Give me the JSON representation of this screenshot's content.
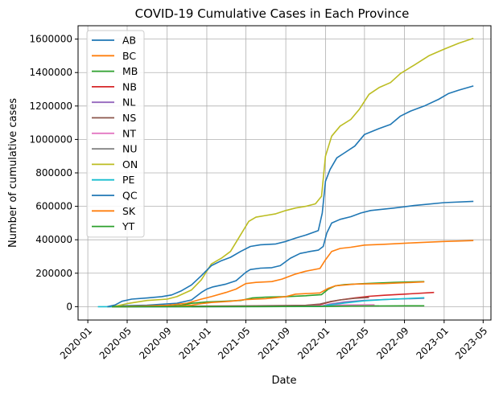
{
  "chart_data": {
    "type": "line",
    "title": "COVID-19 Cumulative Cases in Each Province",
    "xlabel": "Date",
    "ylabel": "Number of cumulative cases",
    "xlim": [
      "2019-12-02",
      "2023-05-25"
    ],
    "ylim": [
      -80000,
      1680000
    ],
    "x_ticks": [
      "2020-01",
      "2020-05",
      "2020-09",
      "2021-01",
      "2021-05",
      "2021-09",
      "2022-01",
      "2022-05",
      "2022-09",
      "2023-01",
      "2023-05"
    ],
    "y_ticks": [
      0,
      200000,
      400000,
      600000,
      800000,
      1000000,
      1200000,
      1400000,
      1600000
    ],
    "grid": true,
    "legend_position": "top-left",
    "series": [
      {
        "name": "AB",
        "color": "#1f77b4",
        "points": [
          [
            "2020-03-05",
            0
          ],
          [
            "2020-04-15",
            5000
          ],
          [
            "2020-07-01",
            9000
          ],
          [
            "2020-10-01",
            20000
          ],
          [
            "2020-11-15",
            40000
          ],
          [
            "2020-12-15",
            85000
          ],
          [
            "2021-01-01",
            105000
          ],
          [
            "2021-01-20",
            118000
          ],
          [
            "2021-03-01",
            135000
          ],
          [
            "2021-04-01",
            155000
          ],
          [
            "2021-05-01",
            205000
          ],
          [
            "2021-05-15",
            222000
          ],
          [
            "2021-06-15",
            230000
          ],
          [
            "2021-07-20",
            233000
          ],
          [
            "2021-08-15",
            245000
          ],
          [
            "2021-09-15",
            290000
          ],
          [
            "2021-10-15",
            318000
          ],
          [
            "2021-11-15",
            330000
          ],
          [
            "2021-12-10",
            338000
          ],
          [
            "2021-12-25",
            360000
          ],
          [
            "2022-01-05",
            440000
          ],
          [
            "2022-01-20",
            500000
          ],
          [
            "2022-02-15",
            522000
          ],
          [
            "2022-03-20",
            538000
          ],
          [
            "2022-04-20",
            560000
          ],
          [
            "2022-05-20",
            575000
          ],
          [
            "2022-08-01",
            590000
          ],
          [
            "2022-10-01",
            605000
          ],
          [
            "2023-01-01",
            622000
          ],
          [
            "2023-04-01",
            630000
          ]
        ]
      },
      {
        "name": "BC",
        "color": "#ff7f0e",
        "points": [
          [
            "2020-03-01",
            0
          ],
          [
            "2020-06-01",
            3000
          ],
          [
            "2020-09-01",
            8000
          ],
          [
            "2020-11-01",
            20000
          ],
          [
            "2020-12-15",
            45000
          ],
          [
            "2021-01-15",
            60000
          ],
          [
            "2021-03-01",
            85000
          ],
          [
            "2021-04-01",
            105000
          ],
          [
            "2021-05-01",
            138000
          ],
          [
            "2021-06-01",
            145000
          ],
          [
            "2021-07-20",
            150000
          ],
          [
            "2021-08-20",
            165000
          ],
          [
            "2021-10-01",
            195000
          ],
          [
            "2021-11-01",
            212000
          ],
          [
            "2021-12-15",
            228000
          ],
          [
            "2022-01-01",
            280000
          ],
          [
            "2022-01-20",
            330000
          ],
          [
            "2022-02-15",
            348000
          ],
          [
            "2022-03-20",
            355000
          ],
          [
            "2022-05-01",
            368000
          ],
          [
            "2022-07-01",
            373000
          ],
          [
            "2022-10-01",
            382000
          ],
          [
            "2023-01-01",
            390000
          ],
          [
            "2023-04-01",
            395000
          ]
        ]
      },
      {
        "name": "MB",
        "color": "#2ca02c",
        "points": [
          [
            "2020-03-15",
            0
          ],
          [
            "2020-09-01",
            1500
          ],
          [
            "2020-10-15",
            8000
          ],
          [
            "2020-11-15",
            20000
          ],
          [
            "2021-01-01",
            28000
          ],
          [
            "2021-03-01",
            33000
          ],
          [
            "2021-04-15",
            37000
          ],
          [
            "2021-05-20",
            52000
          ],
          [
            "2021-07-01",
            57000
          ],
          [
            "2021-09-01",
            60000
          ],
          [
            "2021-11-01",
            65000
          ],
          [
            "2021-12-20",
            72000
          ],
          [
            "2022-01-10",
            105000
          ],
          [
            "2022-02-01",
            125000
          ],
          [
            "2022-03-01",
            132000
          ],
          [
            "2022-05-01",
            138000
          ],
          [
            "2022-08-01",
            145000
          ],
          [
            "2022-11-01",
            150000
          ]
        ]
      },
      {
        "name": "NB",
        "color": "#d62728",
        "points": [
          [
            "2020-03-15",
            0
          ],
          [
            "2021-08-01",
            2000
          ],
          [
            "2021-11-01",
            7000
          ],
          [
            "2021-12-15",
            12000
          ],
          [
            "2022-01-15",
            28000
          ],
          [
            "2022-02-15",
            40000
          ],
          [
            "2022-04-01",
            52000
          ],
          [
            "2022-05-15",
            62000
          ],
          [
            "2022-07-01",
            68000
          ],
          [
            "2022-09-01",
            75000
          ],
          [
            "2022-12-01",
            85000
          ]
        ]
      },
      {
        "name": "NL",
        "color": "#9467bd",
        "points": [
          [
            "2020-03-15",
            0
          ],
          [
            "2021-12-15",
            1500
          ],
          [
            "2022-01-15",
            15000
          ],
          [
            "2022-03-01",
            28000
          ],
          [
            "2022-05-01",
            38000
          ],
          [
            "2022-08-01",
            45000
          ],
          [
            "2022-11-01",
            50000
          ]
        ]
      },
      {
        "name": "NS",
        "color": "#8c564b",
        "points": [
          [
            "2020-03-15",
            0
          ],
          [
            "2021-06-01",
            5000
          ],
          [
            "2021-11-01",
            8000
          ],
          [
            "2021-12-15",
            15000
          ],
          [
            "2022-01-15",
            30000
          ],
          [
            "2022-02-15",
            40000
          ],
          [
            "2022-04-01",
            50000
          ],
          [
            "2022-05-15",
            55000
          ]
        ]
      },
      {
        "name": "NT",
        "color": "#e377c2",
        "points": [
          [
            "2020-03-15",
            0
          ],
          [
            "2021-08-15",
            1000
          ],
          [
            "2021-11-01",
            2000
          ],
          [
            "2022-01-15",
            8000
          ],
          [
            "2022-03-01",
            10000
          ],
          [
            "2022-06-01",
            11500
          ]
        ]
      },
      {
        "name": "NU",
        "color": "#7f7f7f",
        "points": [
          [
            "2020-11-15",
            0
          ],
          [
            "2021-12-15",
            1500
          ],
          [
            "2022-01-15",
            2500
          ],
          [
            "2022-03-15",
            3500
          ],
          [
            "2022-06-15",
            4000
          ]
        ]
      },
      {
        "name": "ON",
        "color": "#bcbd22",
        "points": [
          [
            "2020-03-01",
            0
          ],
          [
            "2020-04-01",
            5000
          ],
          [
            "2020-05-01",
            18000
          ],
          [
            "2020-07-01",
            37000
          ],
          [
            "2020-09-01",
            45000
          ],
          [
            "2020-10-01",
            60000
          ],
          [
            "2020-11-15",
            100000
          ],
          [
            "2020-12-15",
            160000
          ],
          [
            "2021-01-15",
            255000
          ],
          [
            "2021-02-15",
            290000
          ],
          [
            "2021-03-15",
            330000
          ],
          [
            "2021-04-15",
            430000
          ],
          [
            "2021-05-10",
            510000
          ],
          [
            "2021-06-01",
            535000
          ],
          [
            "2021-07-01",
            545000
          ],
          [
            "2021-08-01",
            555000
          ],
          [
            "2021-09-01",
            575000
          ],
          [
            "2021-10-01",
            590000
          ],
          [
            "2021-11-01",
            600000
          ],
          [
            "2021-12-01",
            615000
          ],
          [
            "2021-12-20",
            660000
          ],
          [
            "2022-01-01",
            900000
          ],
          [
            "2022-01-20",
            1020000
          ],
          [
            "2022-02-15",
            1080000
          ],
          [
            "2022-03-20",
            1120000
          ],
          [
            "2022-04-15",
            1180000
          ],
          [
            "2022-05-15",
            1270000
          ],
          [
            "2022-06-15",
            1310000
          ],
          [
            "2022-07-20",
            1340000
          ],
          [
            "2022-08-20",
            1395000
          ],
          [
            "2022-10-01",
            1445000
          ],
          [
            "2022-11-15",
            1500000
          ],
          [
            "2023-01-01",
            1540000
          ],
          [
            "2023-02-15",
            1575000
          ],
          [
            "2023-04-01",
            1605000
          ]
        ]
      },
      {
        "name": "PE",
        "color": "#17becf",
        "points": [
          [
            "2020-02-01",
            0
          ],
          [
            "2021-12-15",
            800
          ],
          [
            "2022-01-15",
            10000
          ],
          [
            "2022-03-01",
            22000
          ],
          [
            "2022-05-01",
            35000
          ],
          [
            "2022-07-01",
            42000
          ],
          [
            "2022-09-01",
            48000
          ],
          [
            "2022-11-01",
            53000
          ]
        ]
      },
      {
        "name": "QC",
        "color": "#1f77b4",
        "points": [
          [
            "2020-03-01",
            0
          ],
          [
            "2020-03-25",
            10000
          ],
          [
            "2020-04-15",
            32000
          ],
          [
            "2020-05-15",
            45000
          ],
          [
            "2020-07-01",
            52000
          ],
          [
            "2020-08-15",
            60000
          ],
          [
            "2020-09-15",
            70000
          ],
          [
            "2020-10-15",
            95000
          ],
          [
            "2020-11-15",
            130000
          ],
          [
            "2020-12-15",
            185000
          ],
          [
            "2021-01-15",
            245000
          ],
          [
            "2021-02-15",
            275000
          ],
          [
            "2021-03-15",
            295000
          ],
          [
            "2021-04-15",
            330000
          ],
          [
            "2021-05-15",
            360000
          ],
          [
            "2021-06-15",
            370000
          ],
          [
            "2021-08-01",
            375000
          ],
          [
            "2021-09-01",
            390000
          ],
          [
            "2021-10-01",
            410000
          ],
          [
            "2021-11-01",
            428000
          ],
          [
            "2021-12-10",
            455000
          ],
          [
            "2021-12-22",
            560000
          ],
          [
            "2022-01-01",
            750000
          ],
          [
            "2022-01-15",
            820000
          ],
          [
            "2022-02-05",
            890000
          ],
          [
            "2022-03-01",
            920000
          ],
          [
            "2022-04-01",
            960000
          ],
          [
            "2022-05-01",
            1030000
          ],
          [
            "2022-06-15",
            1065000
          ],
          [
            "2022-07-20",
            1090000
          ],
          [
            "2022-08-20",
            1140000
          ],
          [
            "2022-09-20",
            1170000
          ],
          [
            "2022-11-01",
            1200000
          ],
          [
            "2022-12-15",
            1240000
          ],
          [
            "2023-01-15",
            1275000
          ],
          [
            "2023-02-15",
            1295000
          ],
          [
            "2023-04-01",
            1320000
          ]
        ]
      },
      {
        "name": "SK",
        "color": "#ff7f0e",
        "points": [
          [
            "2020-03-15",
            0
          ],
          [
            "2020-10-01",
            2000
          ],
          [
            "2020-11-15",
            9000
          ],
          [
            "2020-12-15",
            18000
          ],
          [
            "2021-01-15",
            25000
          ],
          [
            "2021-03-15",
            32000
          ],
          [
            "2021-05-01",
            42000
          ],
          [
            "2021-07-01",
            48000
          ],
          [
            "2021-09-01",
            60000
          ],
          [
            "2021-10-01",
            75000
          ],
          [
            "2021-12-15",
            82000
          ],
          [
            "2022-01-10",
            110000
          ],
          [
            "2022-02-01",
            125000
          ],
          [
            "2022-04-01",
            135000
          ],
          [
            "2022-07-01",
            138000
          ],
          [
            "2022-11-01",
            148000
          ]
        ]
      },
      {
        "name": "YT",
        "color": "#2ca02c",
        "points": [
          [
            "2020-03-15",
            0
          ],
          [
            "2021-06-15",
            500
          ],
          [
            "2022-01-15",
            2000
          ],
          [
            "2022-06-01",
            4000
          ],
          [
            "2022-11-01",
            5000
          ]
        ]
      }
    ]
  }
}
